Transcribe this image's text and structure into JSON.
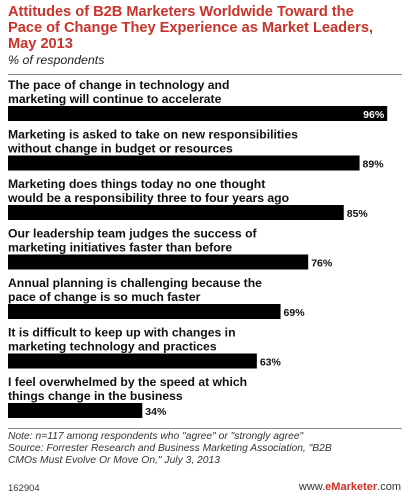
{
  "title_lines": [
    "Attitudes of B2B Marketers Worldwide Toward the",
    "Pace of Change They Experience as Market Leaders,",
    "May 2013"
  ],
  "subtitle": "% of respondents",
  "chart_data": {
    "type": "bar",
    "orientation": "horizontal",
    "title": "Attitudes of B2B Marketers Worldwide Toward the Pace of Change They Experience as Market Leaders, May 2013",
    "unit": "% of respondents",
    "categories": [
      [
        "The pace of change in technology and",
        "marketing will continue to accelerate"
      ],
      [
        "Marketing is asked to take on new responsibilities",
        "without change in budget or resources"
      ],
      [
        "Marketing does things today no one thought",
        "would be a responsibility three to four years ago"
      ],
      [
        "Our leadership team judges the success of",
        "marketing initiatives faster than before"
      ],
      [
        "Annual planning is challenging because the",
        "pace of change is so much faster"
      ],
      [
        "It is difficult to keep up with changes in",
        "marketing technology and practices"
      ],
      [
        "I feel overwhelmed by the speed at which",
        "things change in the business"
      ]
    ],
    "values": [
      96,
      89,
      85,
      76,
      69,
      63,
      34
    ],
    "value_labels": [
      "96%",
      "89%",
      "85%",
      "76%",
      "69%",
      "63%",
      "34%"
    ],
    "xlim": [
      0,
      100
    ],
    "bar_color": "#000000",
    "grid": false,
    "legend": "none"
  },
  "notes": [
    "Note: n=117 among respondents who \"agree\" or \"strongly agree\"",
    "Source: Forrester Research and Business Marketing Association, \"B2B",
    "CMOs Must Evolve Or Move On,\" July 3, 2013"
  ],
  "footer": {
    "id": "162904",
    "brand_prefix": "www.",
    "brand_name": "eMarketer",
    "brand_suffix": ".com"
  }
}
